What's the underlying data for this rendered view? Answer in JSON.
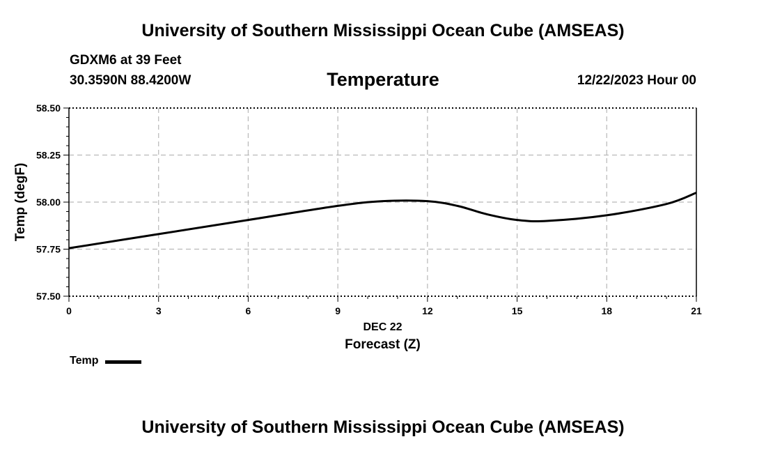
{
  "header": {
    "title": "University of Southern Mississippi Ocean Cube (AMSEAS)",
    "station": "GDXM6 at 39 Feet",
    "coords": "30.3590N  88.4200W",
    "date": "12/22/2023 Hour 00"
  },
  "footer": {
    "title": "University of Southern Mississippi Ocean Cube (AMSEAS)"
  },
  "chart_data": {
    "type": "line",
    "title": "Temperature",
    "xlabel": "Forecast (Z)",
    "xsublabel": "DEC 22",
    "ylabel": "Temp (degF)",
    "xlim": [
      0,
      21
    ],
    "ylim": [
      57.5,
      58.5
    ],
    "xticks": [
      0,
      3,
      6,
      9,
      12,
      15,
      18,
      21
    ],
    "xtick_labels": [
      "0",
      "3",
      "6",
      "9",
      "12",
      "15",
      "18",
      "21"
    ],
    "yticks": [
      57.5,
      57.75,
      58.0,
      58.25,
      58.5
    ],
    "ytick_labels": [
      "57.50",
      "57.75",
      "58.00",
      "58.25",
      "58.50"
    ],
    "grid": true,
    "legend_position": "bottom-left",
    "series": [
      {
        "name": "Temp",
        "color": "#000000",
        "x": [
          0,
          3,
          6,
          9,
          10.5,
          12,
          13,
          14,
          15,
          16,
          18,
          20,
          21
        ],
        "y": [
          57.755,
          57.83,
          57.905,
          57.98,
          58.005,
          58.005,
          57.98,
          57.935,
          57.905,
          57.9,
          57.93,
          57.99,
          58.05
        ]
      }
    ]
  }
}
